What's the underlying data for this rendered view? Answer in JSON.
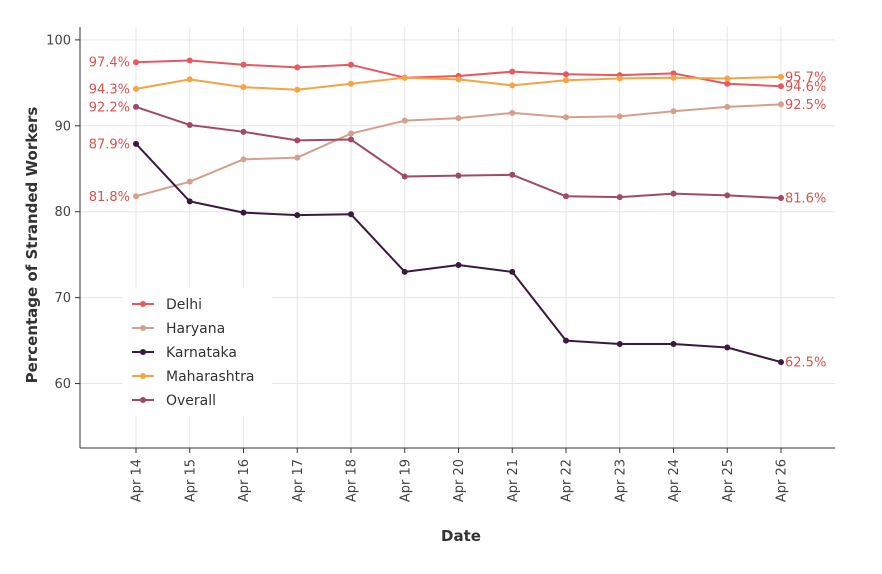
{
  "chart_data": {
    "type": "line",
    "title": "",
    "xlabel": "Date",
    "ylabel": "Percentage of Stranded Workers",
    "categories": [
      "Apr 14",
      "Apr 15",
      "Apr 16",
      "Apr 17",
      "Apr 18",
      "Apr 19",
      "Apr 20",
      "Apr 21",
      "Apr 22",
      "Apr 23",
      "Apr 24",
      "Apr 25",
      "Apr 26"
    ],
    "ylim": [
      52.5,
      101.5
    ],
    "yticks": [
      60,
      70,
      80,
      90,
      100
    ],
    "grid": true,
    "legend_position": "bottom-left",
    "series": [
      {
        "name": "Delhi",
        "color": "#e8585f",
        "values": [
          97.4,
          97.6,
          97.1,
          96.8,
          97.1,
          95.6,
          95.8,
          96.3,
          96.0,
          95.9,
          96.1,
          94.9,
          94.6
        ],
        "start_label": "97.4%",
        "end_label": "94.6%"
      },
      {
        "name": "Haryana",
        "color": "#d4a08c",
        "values": [
          81.8,
          83.5,
          86.1,
          86.3,
          89.1,
          90.6,
          90.9,
          91.5,
          91.0,
          91.1,
          91.7,
          92.2,
          92.5
        ],
        "start_label": "81.8%",
        "end_label": "92.5%"
      },
      {
        "name": "Karnataka",
        "color": "#3a1a3c",
        "values": [
          87.9,
          81.2,
          79.9,
          79.6,
          79.7,
          73.0,
          73.8,
          73.0,
          65.0,
          64.6,
          64.6,
          64.2,
          62.5
        ],
        "start_label": "87.9%",
        "end_label": "62.5%"
      },
      {
        "name": "Maharashtra",
        "color": "#f5a343",
        "values": [
          94.3,
          95.4,
          94.5,
          94.2,
          94.9,
          95.6,
          95.4,
          94.7,
          95.3,
          95.5,
          95.6,
          95.5,
          95.7
        ],
        "start_label": "94.3%",
        "end_label": "95.7%"
      },
      {
        "name": "Overall",
        "color": "#a04a66",
        "values": [
          92.2,
          90.1,
          89.3,
          88.3,
          88.4,
          84.1,
          84.2,
          84.3,
          81.8,
          81.7,
          82.1,
          81.9,
          81.6
        ],
        "start_label": "92.2%",
        "end_label": "81.6%"
      }
    ]
  },
  "colors": {
    "label_text": "#d9534f",
    "grid": "#e6e6e6",
    "axis": "#333333"
  }
}
